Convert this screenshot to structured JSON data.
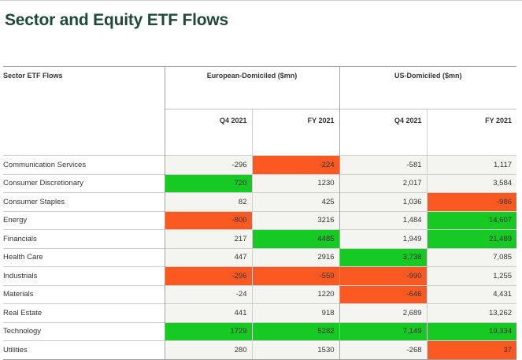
{
  "title": "Sector and Equity ETF Flows",
  "table": {
    "corner_label": "Sector ETF Flows",
    "groups": [
      "European-Domiciled ($mn)",
      "US-Domiciled ($mn)"
    ],
    "columns": [
      "Q4 2021",
      "FY 2021",
      "Q4 2021",
      "FY 2021"
    ],
    "rows": [
      {
        "sector": "Communication Services",
        "values": [
          "-296",
          "-224",
          "-581",
          "1,117"
        ],
        "highlight": [
          "",
          "neg",
          "",
          ""
        ]
      },
      {
        "sector": "Consumer Discretionary",
        "values": [
          "720",
          "1230",
          "2,017",
          "3,584"
        ],
        "highlight": [
          "pos",
          "",
          "",
          ""
        ]
      },
      {
        "sector": "Consumer Staples",
        "values": [
          "82",
          "425",
          "1,036",
          "-986"
        ],
        "highlight": [
          "",
          "",
          "",
          "neg"
        ]
      },
      {
        "sector": "Energy",
        "values": [
          "-800",
          "3216",
          "1,484",
          "14,607"
        ],
        "highlight": [
          "neg",
          "",
          "",
          "pos"
        ]
      },
      {
        "sector": "Financials",
        "values": [
          "217",
          "4485",
          "1,949",
          "21,489"
        ],
        "highlight": [
          "",
          "pos",
          "",
          "pos"
        ]
      },
      {
        "sector": "Health Care",
        "values": [
          "447",
          "2916",
          "3,738",
          "7,085"
        ],
        "highlight": [
          "",
          "",
          "pos",
          ""
        ]
      },
      {
        "sector": "Industrials",
        "values": [
          "-296",
          "-559",
          "-990",
          "1,255"
        ],
        "highlight": [
          "neg",
          "neg",
          "neg",
          ""
        ]
      },
      {
        "sector": "Materials",
        "values": [
          "-24",
          "1220",
          "-646",
          "4,431"
        ],
        "highlight": [
          "",
          "",
          "neg",
          ""
        ]
      },
      {
        "sector": "Real Estate",
        "values": [
          "441",
          "918",
          "2,689",
          "13,262"
        ],
        "highlight": [
          "",
          "",
          "",
          ""
        ]
      },
      {
        "sector": "Technology",
        "values": [
          "1729",
          "5282",
          "7,149",
          "19,334"
        ],
        "highlight": [
          "pos",
          "pos",
          "pos",
          "pos"
        ]
      },
      {
        "sector": "Utilities",
        "values": [
          "280",
          "1530",
          "-268",
          "37"
        ],
        "highlight": [
          "",
          "",
          "",
          "neg"
        ]
      }
    ]
  },
  "colors": {
    "positive_highlight": "#17c923",
    "negative_highlight": "#fa5a22",
    "title_color": "#1f4a3a"
  }
}
